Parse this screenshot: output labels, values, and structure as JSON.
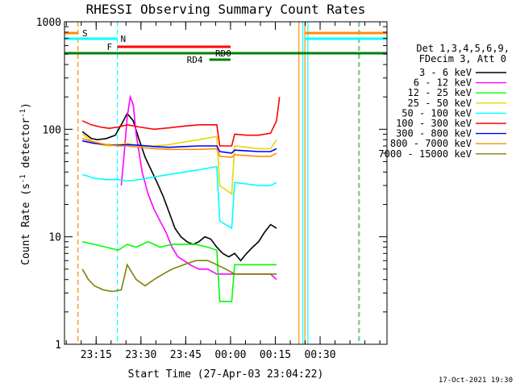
{
  "chart_data": {
    "type": "line",
    "title": "RHESSI Observing Summary Count Rates",
    "xlabel": "Start Time (27-Apr-03 23:04:22)",
    "ylabel_parts": [
      "Count Rate (s",
      "-1",
      " detector",
      "-1",
      ")"
    ],
    "yscale": "log",
    "ylim": [
      1,
      1000
    ],
    "xlim_minutes": [
      0,
      108
    ],
    "y_ticks": [
      {
        "value": 1,
        "label": "1"
      },
      {
        "value": 10,
        "label": "10"
      },
      {
        "value": 100,
        "label": "100"
      },
      {
        "value": 1000,
        "label": "1000"
      }
    ],
    "x_ticks": [
      {
        "t": 10.6,
        "label": "23:15"
      },
      {
        "t": 25.6,
        "label": "23:30"
      },
      {
        "t": 40.6,
        "label": "23:45"
      },
      {
        "t": 55.6,
        "label": "00:00"
      },
      {
        "t": 70.6,
        "label": "00:15"
      },
      {
        "t": 85.6,
        "label": "00:30"
      }
    ],
    "legend_header": [
      "Det 1,3,4,5,6,9,",
      "FDecim 3, Att 0"
    ],
    "footer_date": "17-Oct-2021 19:30",
    "series": [
      {
        "name": "3 - 6 keV",
        "color": "#000000",
        "points": [
          [
            6,
            95
          ],
          [
            9,
            82
          ],
          [
            11,
            80
          ],
          [
            14,
            82
          ],
          [
            17,
            88
          ],
          [
            19,
            110
          ],
          [
            21,
            140
          ],
          [
            22,
            130
          ],
          [
            23,
            120
          ],
          [
            25,
            80
          ],
          [
            27,
            55
          ],
          [
            29,
            42
          ],
          [
            31,
            32
          ],
          [
            33,
            24
          ],
          [
            35,
            17
          ],
          [
            37,
            12
          ],
          [
            39,
            10
          ],
          [
            41,
            9
          ],
          [
            43,
            8.5
          ],
          [
            45,
            9
          ],
          [
            47,
            10
          ],
          [
            49,
            9.5
          ],
          [
            51,
            8
          ],
          [
            53,
            7
          ],
          [
            55,
            6.5
          ],
          [
            57,
            7
          ],
          [
            59,
            6
          ],
          [
            61,
            7
          ],
          [
            63,
            8
          ],
          [
            65,
            9
          ],
          [
            67,
            11
          ],
          [
            69,
            13
          ],
          [
            71,
            12
          ]
        ]
      },
      {
        "name": "6 - 12 keV",
        "color": "#ff00ff",
        "points": [
          [
            19,
            30
          ],
          [
            20,
            60
          ],
          [
            21,
            130
          ],
          [
            22,
            200
          ],
          [
            23,
            170
          ],
          [
            24,
            90
          ],
          [
            26,
            40
          ],
          [
            28,
            25
          ],
          [
            30,
            18
          ],
          [
            32,
            14
          ],
          [
            34,
            11
          ],
          [
            36,
            8
          ],
          [
            38,
            6.5
          ],
          [
            40,
            6
          ],
          [
            42,
            5.5
          ],
          [
            45,
            5
          ],
          [
            48,
            5
          ],
          [
            51,
            4.5
          ],
          [
            54,
            4.5
          ],
          [
            57,
            4.5
          ],
          [
            60,
            4.5
          ],
          [
            63,
            4.5
          ],
          [
            66,
            4.5
          ],
          [
            69,
            4.5
          ],
          [
            71,
            4
          ]
        ]
      },
      {
        "name": "12 - 25 keV",
        "color": "#00ff00",
        "points": [
          [
            6,
            9
          ],
          [
            10,
            8.5
          ],
          [
            14,
            8
          ],
          [
            18,
            7.5
          ],
          [
            21,
            8.5
          ],
          [
            24,
            8
          ],
          [
            28,
            9
          ],
          [
            32,
            8
          ],
          [
            36,
            8.5
          ],
          [
            40,
            8.5
          ],
          [
            44,
            8.5
          ],
          [
            48,
            8
          ],
          [
            51,
            7.5
          ],
          [
            52,
            2.5
          ],
          [
            56,
            2.5
          ],
          [
            57,
            5.5
          ],
          [
            61,
            5.5
          ],
          [
            65,
            5.5
          ],
          [
            69,
            5.5
          ],
          [
            71,
            5.5
          ]
        ]
      },
      {
        "name": "25 - 50 keV",
        "color": "#e6d800",
        "points": [
          [
            6,
            90
          ],
          [
            9,
            78
          ],
          [
            12,
            72
          ],
          [
            15,
            70
          ],
          [
            18,
            72
          ],
          [
            21,
            74
          ],
          [
            25,
            70
          ],
          [
            30,
            70
          ],
          [
            35,
            72
          ],
          [
            40,
            76
          ],
          [
            45,
            80
          ],
          [
            51,
            86
          ],
          [
            52,
            30
          ],
          [
            56,
            25
          ],
          [
            57,
            70
          ],
          [
            61,
            68
          ],
          [
            65,
            66
          ],
          [
            69,
            66
          ],
          [
            71,
            80
          ]
        ]
      },
      {
        "name": "50 - 100 keV",
        "color": "#00ffff",
        "points": [
          [
            6,
            38
          ],
          [
            10,
            35
          ],
          [
            14,
            34
          ],
          [
            18,
            34
          ],
          [
            21,
            33
          ],
          [
            25,
            34
          ],
          [
            30,
            36
          ],
          [
            35,
            38
          ],
          [
            40,
            40
          ],
          [
            45,
            42
          ],
          [
            51,
            45
          ],
          [
            52,
            14
          ],
          [
            56,
            12
          ],
          [
            57,
            32
          ],
          [
            61,
            31
          ],
          [
            65,
            30
          ],
          [
            69,
            30
          ],
          [
            71,
            32
          ]
        ]
      },
      {
        "name": "100 - 300 keV",
        "color": "#ff0000",
        "points": [
          [
            6,
            120
          ],
          [
            9,
            110
          ],
          [
            12,
            105
          ],
          [
            15,
            102
          ],
          [
            18,
            105
          ],
          [
            21,
            110
          ],
          [
            25,
            105
          ],
          [
            30,
            100
          ],
          [
            35,
            103
          ],
          [
            40,
            107
          ],
          [
            45,
            110
          ],
          [
            51,
            110
          ],
          [
            52,
            70
          ],
          [
            56,
            70
          ],
          [
            57,
            90
          ],
          [
            61,
            88
          ],
          [
            65,
            88
          ],
          [
            69,
            92
          ],
          [
            71,
            120
          ],
          [
            72,
            200
          ]
        ]
      },
      {
        "name": "300 - 800 keV",
        "color": "#0000ff",
        "points": [
          [
            6,
            78
          ],
          [
            10,
            74
          ],
          [
            14,
            72
          ],
          [
            18,
            71
          ],
          [
            21,
            72
          ],
          [
            25,
            71
          ],
          [
            30,
            69
          ],
          [
            35,
            68
          ],
          [
            40,
            69
          ],
          [
            45,
            70
          ],
          [
            51,
            70
          ],
          [
            52,
            62
          ],
          [
            56,
            60
          ],
          [
            57,
            64
          ],
          [
            61,
            63
          ],
          [
            65,
            62
          ],
          [
            69,
            62
          ],
          [
            71,
            66
          ]
        ]
      },
      {
        "name": "800 - 7000 keV",
        "color": "#ff8c00",
        "points": [
          [
            6,
            82
          ],
          [
            10,
            76
          ],
          [
            14,
            72
          ],
          [
            18,
            70
          ],
          [
            21,
            70
          ],
          [
            25,
            68
          ],
          [
            30,
            66
          ],
          [
            35,
            65
          ],
          [
            40,
            65
          ],
          [
            45,
            65
          ],
          [
            51,
            66
          ],
          [
            52,
            56
          ],
          [
            56,
            55
          ],
          [
            57,
            58
          ],
          [
            61,
            57
          ],
          [
            65,
            56
          ],
          [
            69,
            56
          ],
          [
            71,
            60
          ]
        ]
      },
      {
        "name": "7000 - 15000 keV",
        "color": "#808000",
        "points": [
          [
            6,
            5
          ],
          [
            8,
            4
          ],
          [
            10,
            3.5
          ],
          [
            13,
            3.2
          ],
          [
            16,
            3.1
          ],
          [
            19,
            3.2
          ],
          [
            21,
            5.5
          ],
          [
            24,
            4
          ],
          [
            27,
            3.5
          ],
          [
            30,
            4
          ],
          [
            33,
            4.5
          ],
          [
            36,
            5
          ],
          [
            40,
            5.5
          ],
          [
            44,
            6
          ],
          [
            48,
            6
          ],
          [
            51,
            5.5
          ],
          [
            54,
            5
          ],
          [
            57,
            4.5
          ],
          [
            61,
            4.5
          ],
          [
            65,
            4.5
          ],
          [
            69,
            4.5
          ],
          [
            71,
            4.5
          ]
        ]
      }
    ],
    "flags": [
      {
        "label": "S",
        "color": "#ff8c00",
        "segments": [
          [
            0,
            4.5
          ],
          [
            80.5,
            108
          ]
        ]
      },
      {
        "label": "N",
        "color": "#00ffff",
        "segments": [
          [
            0,
            17.7
          ],
          [
            80.5,
            108
          ]
        ]
      },
      {
        "label": "F",
        "color": "#ff0000",
        "segments": [
          [
            17.7,
            55.6
          ]
        ]
      },
      {
        "label": "RD0",
        "color": "#008000",
        "segments": [
          [
            0,
            108
          ]
        ]
      },
      {
        "label": "RD4",
        "color": "#008000",
        "segments": [
          [
            48.5,
            55.6
          ]
        ]
      }
    ],
    "vertical_markers": [
      {
        "t": 4.5,
        "color": "#ff8c00",
        "style": "dashed"
      },
      {
        "t": 17.7,
        "color": "#00ffff",
        "style": "dashed"
      },
      {
        "t": 78.5,
        "color": "#ff8c00",
        "style": "solid"
      },
      {
        "t": 79.8,
        "color": "#00ffff",
        "style": "solid"
      },
      {
        "t": 80.5,
        "color": "#ff8c00",
        "style": "solid"
      },
      {
        "t": 81.5,
        "color": "#00ffff",
        "style": "solid"
      },
      {
        "t": 98.5,
        "color": "#ff8c00",
        "style": "dashed"
      },
      {
        "t": 98.8,
        "color": "#00ffff",
        "style": "dashed"
      }
    ]
  }
}
